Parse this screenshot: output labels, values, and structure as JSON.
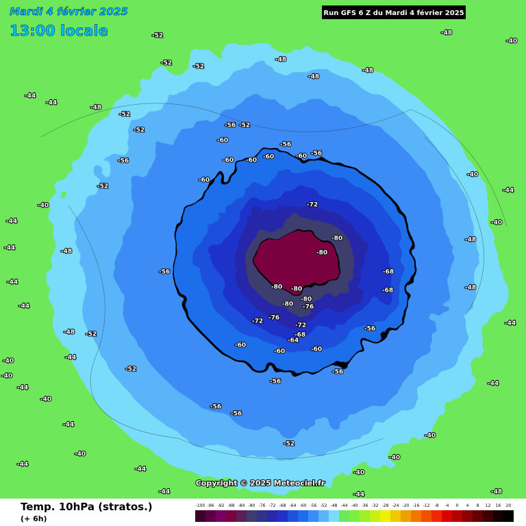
{
  "header": {
    "date": "Mardi 4 février 2025",
    "time": "13:00 locale",
    "run": "Run GFS 6 Z du Mardi 4 février 2025"
  },
  "footer": {
    "title": "Temp. 10hPa (stratos.)",
    "lead": "(+ 6h)",
    "copyright": "Copyright © 2025 Meteociel.fr"
  },
  "legend": {
    "values": [
      -100,
      -96,
      -92,
      -88,
      -84,
      -80,
      -76,
      -72,
      -68,
      -64,
      -60,
      -56,
      -52,
      -48,
      -44,
      -40,
      -36,
      -32,
      -28,
      -24,
      -20,
      -16,
      -12,
      -8,
      -4,
      0,
      4,
      8,
      12,
      16,
      20
    ],
    "colors": [
      "#3c0028",
      "#5a0046",
      "#780064",
      "#7a0040",
      "#5a1e5a",
      "#3c3c6e",
      "#32328c",
      "#2828aa",
      "#1e32c8",
      "#1e50dc",
      "#1e6eeb",
      "#3c8cf5",
      "#5ab4fa",
      "#78dcfa",
      "#6ee85a",
      "#78f03c",
      "#a0f028",
      "#c8f014",
      "#f0f000",
      "#f0c800",
      "#f0a000",
      "#f07800",
      "#f05000",
      "#f02800",
      "#dc0000",
      "#b40000",
      "#8c0000",
      "#640000",
      "#3c0000",
      "#140000",
      "#000000"
    ]
  },
  "map_labels": [
    -48,
    -52,
    -52,
    -52,
    -48,
    -48,
    -48,
    -48,
    -40,
    -44,
    -40,
    -44,
    -44,
    -52,
    -52,
    -56,
    -52,
    -56,
    -56,
    -60,
    -60,
    -60,
    -60,
    -60,
    -60,
    -72,
    -80,
    -80,
    -80,
    -80,
    -80,
    -80,
    -76,
    -76,
    -72,
    -72,
    -68,
    -68,
    -68,
    -64,
    -60,
    -60,
    -60,
    -56,
    -56,
    -56,
    -56,
    -56,
    -52,
    -52,
    -48,
    -44,
    -40,
    -40,
    -40,
    -44,
    -44,
    -40,
    -44,
    -44,
    -44,
    -44,
    -48,
    -40,
    -40,
    -40,
    -44,
    -44,
    -48,
    -48,
    -40,
    -44,
    -40,
    -44,
    -44,
    -44,
    -52,
    -56,
    -56,
    -48,
    -52
  ]
}
